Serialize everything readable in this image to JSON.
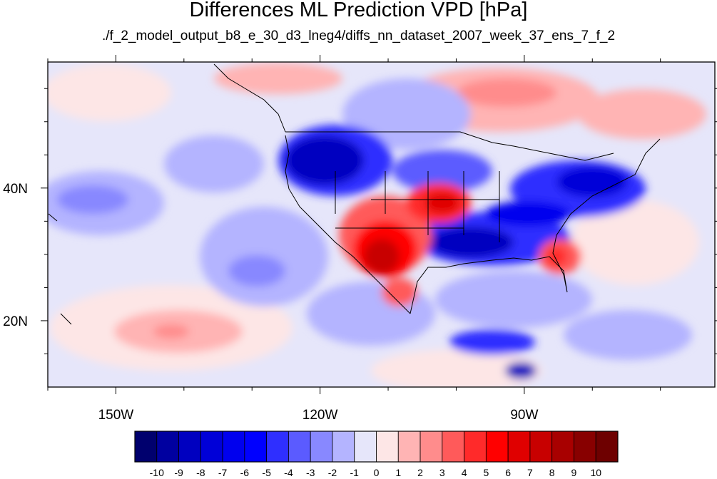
{
  "title": "Differences ML Prediction VPD [hPa]",
  "subtitle": "./f_2_model_output_b8_e_30_d3_lneg4/diffs_nn_dataset_2007_week_37_ens_7_f_2",
  "map": {
    "lon_range": [
      -160,
      -62
    ],
    "lat_range": [
      10,
      59
    ],
    "lon_ticks": [
      {
        "value": -150,
        "label": "150W"
      },
      {
        "value": -120,
        "label": "120W"
      },
      {
        "value": -90,
        "label": "90W"
      }
    ],
    "lat_ticks": [
      {
        "value": 40,
        "label": "40N"
      },
      {
        "value": 20,
        "label": "20N"
      }
    ]
  },
  "colorbar": {
    "labels": [
      "-10",
      "-9",
      "-8",
      "-7",
      "-6",
      "-5",
      "-4",
      "-3",
      "-2",
      "-1",
      "0",
      "1",
      "2",
      "3",
      "4",
      "5",
      "6",
      "7",
      "8",
      "9",
      "10"
    ],
    "colors": [
      "#00006e",
      "#0000a0",
      "#0000c0",
      "#0000d8",
      "#0000ee",
      "#0000ff",
      "#2f2fff",
      "#5b5bff",
      "#8888ff",
      "#b4b4ff",
      "#e6e6fa",
      "#fde6e6",
      "#ffb4b4",
      "#ff8c8c",
      "#ff5a5a",
      "#ff2a2a",
      "#ff0000",
      "#e00000",
      "#c80000",
      "#a80000",
      "#880000",
      "#6e0000"
    ]
  }
}
